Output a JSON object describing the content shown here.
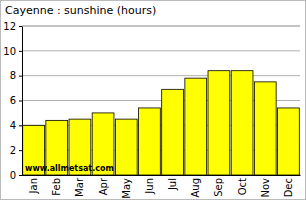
{
  "chart_data": {
    "type": "bar",
    "title": "Cayenne : sunshine (hours)",
    "categories": [
      "Jan",
      "Feb",
      "Mar",
      "Apr",
      "May",
      "Jun",
      "Jul",
      "Aug",
      "Sep",
      "Oct",
      "Nov",
      "Dec"
    ],
    "values": [
      4.0,
      4.4,
      4.5,
      5.0,
      4.5,
      5.4,
      6.9,
      7.8,
      8.4,
      8.4,
      7.5,
      5.4
    ],
    "color": "#ffff00",
    "ylim": [
      0,
      12
    ],
    "yticks": [
      0,
      2,
      4,
      6,
      8,
      10,
      12
    ],
    "grid": true,
    "annotation": "www.allmetsat.com"
  }
}
